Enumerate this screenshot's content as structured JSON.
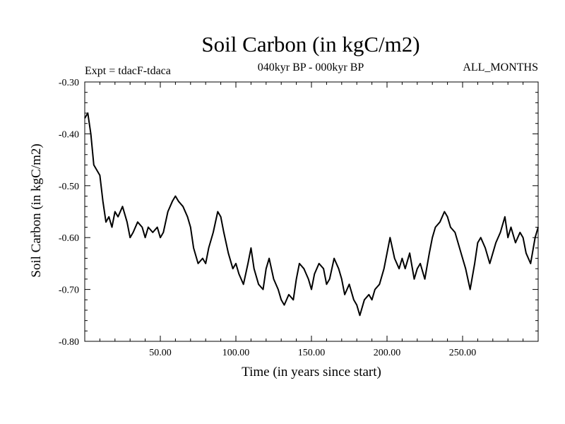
{
  "chart_data": {
    "type": "line",
    "title": "Soil Carbon (in kgC/m2)",
    "experiment_label": "Expt = tdacF-tdaca",
    "period_label": "040kyr BP - 000kyr BP",
    "season_label": "ALL_MONTHS",
    "xlabel": "Time (in years since start)",
    "ylabel": "Soil Carbon (in kgC/m2)",
    "xlim": [
      0,
      300
    ],
    "ylim": [
      -0.8,
      -0.3
    ],
    "xticks": [
      50,
      100,
      150,
      200,
      250
    ],
    "xtick_labels": [
      "50.00",
      "100.00",
      "150.00",
      "200.00",
      "250.00"
    ],
    "yticks": [
      -0.3,
      -0.4,
      -0.5,
      -0.6,
      -0.7,
      -0.8
    ],
    "ytick_labels": [
      "-0.30",
      "-0.40",
      "-0.50",
      "-0.60",
      "-0.70",
      "-0.80"
    ],
    "line_color": "#000000",
    "series": [
      {
        "name": "Soil Carbon",
        "x": [
          0,
          2,
          4,
          6,
          8,
          10,
          12,
          14,
          16,
          18,
          20,
          22,
          25,
          28,
          30,
          32,
          35,
          38,
          40,
          42,
          45,
          48,
          50,
          52,
          55,
          58,
          60,
          62,
          65,
          68,
          70,
          72,
          75,
          78,
          80,
          82,
          85,
          88,
          90,
          92,
          95,
          98,
          100,
          102,
          105,
          108,
          110,
          112,
          115,
          118,
          120,
          122,
          125,
          128,
          130,
          132,
          135,
          138,
          140,
          142,
          145,
          148,
          150,
          152,
          155,
          158,
          160,
          162,
          165,
          168,
          170,
          172,
          175,
          178,
          180,
          182,
          185,
          188,
          190,
          192,
          195,
          198,
          200,
          202,
          205,
          208,
          210,
          212,
          215,
          218,
          220,
          222,
          225,
          228,
          230,
          232,
          235,
          238,
          240,
          242,
          245,
          248,
          250,
          252,
          255,
          258,
          260,
          262,
          265,
          268,
          270,
          272,
          275,
          278,
          280,
          282,
          285,
          288,
          290,
          292,
          295,
          298,
          300
        ],
        "values": [
          -0.37,
          -0.36,
          -0.4,
          -0.46,
          -0.47,
          -0.48,
          -0.53,
          -0.57,
          -0.56,
          -0.58,
          -0.55,
          -0.56,
          -0.54,
          -0.57,
          -0.6,
          -0.59,
          -0.57,
          -0.58,
          -0.6,
          -0.58,
          -0.59,
          -0.58,
          -0.6,
          -0.59,
          -0.55,
          -0.53,
          -0.52,
          -0.53,
          -0.54,
          -0.56,
          -0.58,
          -0.62,
          -0.65,
          -0.64,
          -0.65,
          -0.62,
          -0.59,
          -0.55,
          -0.56,
          -0.59,
          -0.63,
          -0.66,
          -0.65,
          -0.67,
          -0.69,
          -0.65,
          -0.62,
          -0.66,
          -0.69,
          -0.7,
          -0.66,
          -0.64,
          -0.68,
          -0.7,
          -0.72,
          -0.73,
          -0.71,
          -0.72,
          -0.68,
          -0.65,
          -0.66,
          -0.68,
          -0.7,
          -0.67,
          -0.65,
          -0.66,
          -0.69,
          -0.68,
          -0.64,
          -0.66,
          -0.68,
          -0.71,
          -0.69,
          -0.72,
          -0.73,
          -0.75,
          -0.72,
          -0.71,
          -0.72,
          -0.7,
          -0.69,
          -0.66,
          -0.63,
          -0.6,
          -0.64,
          -0.66,
          -0.64,
          -0.66,
          -0.63,
          -0.68,
          -0.66,
          -0.65,
          -0.68,
          -0.63,
          -0.6,
          -0.58,
          -0.57,
          -0.55,
          -0.56,
          -0.58,
          -0.59,
          -0.62,
          -0.64,
          -0.66,
          -0.7,
          -0.65,
          -0.61,
          -0.6,
          -0.62,
          -0.65,
          -0.63,
          -0.61,
          -0.59,
          -0.56,
          -0.6,
          -0.58,
          -0.61,
          -0.59,
          -0.6,
          -0.63,
          -0.65,
          -0.6,
          -0.58
        ]
      }
    ]
  }
}
